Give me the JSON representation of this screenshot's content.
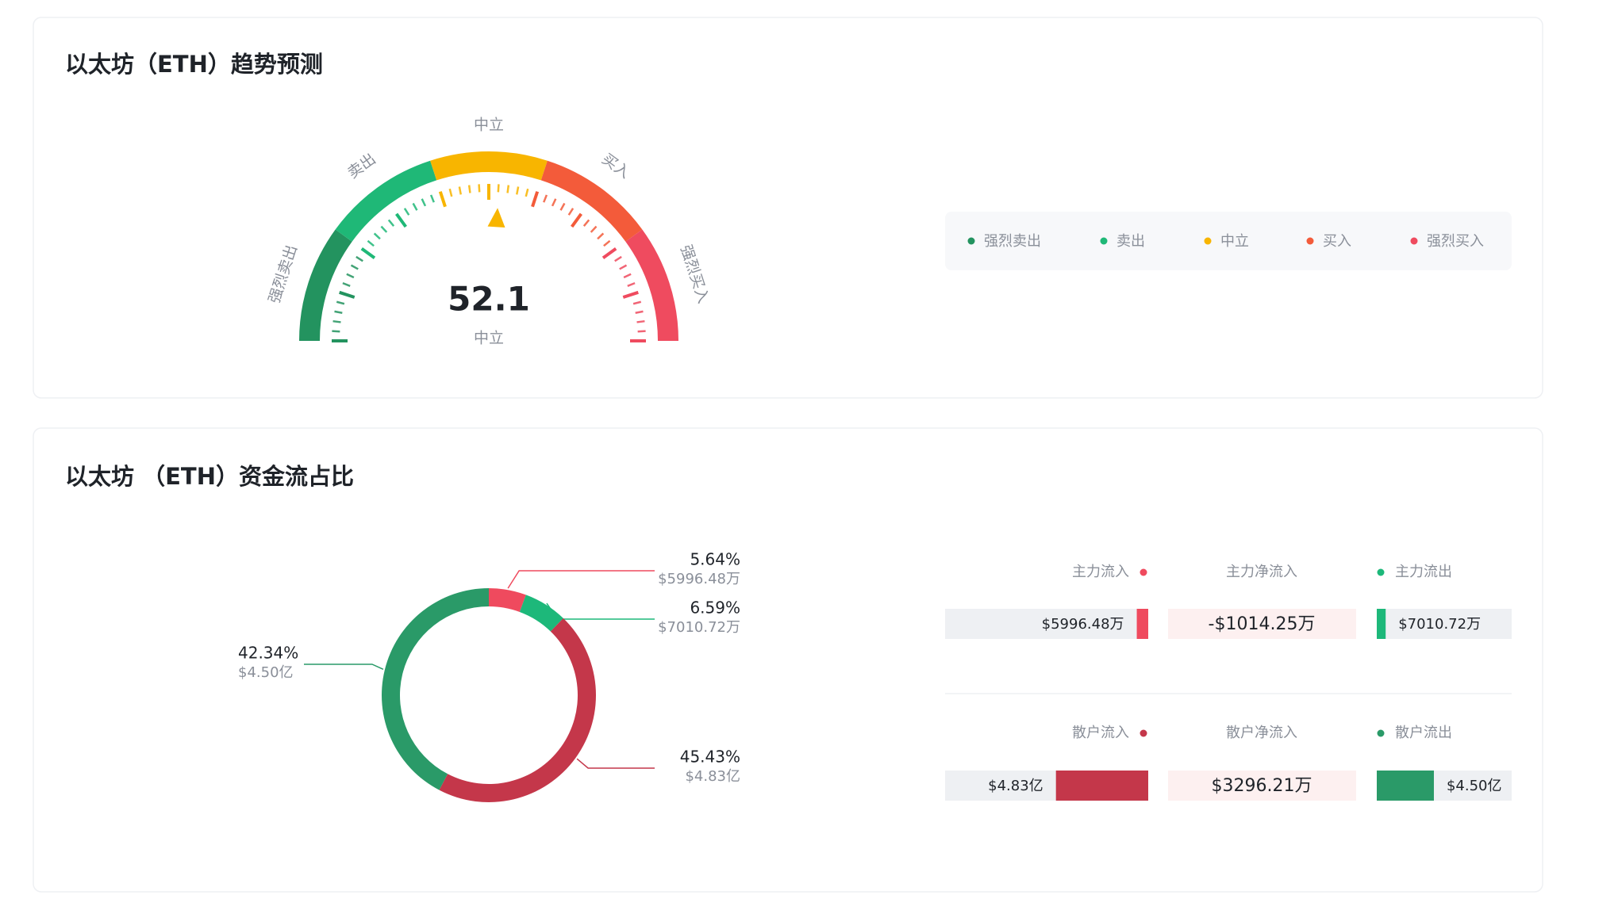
{
  "trend": {
    "title": "以太坊（ETH）趋势预测",
    "value": 52.1,
    "value_label": "中立",
    "range": [
      0,
      100
    ],
    "zones": [
      {
        "label": "强烈卖出",
        "color": "#23935f"
      },
      {
        "label": "卖出",
        "color": "#1fb877"
      },
      {
        "label": "中立",
        "color": "#f8b500"
      },
      {
        "label": "买入",
        "color": "#f35b3a"
      },
      {
        "label": "强烈买入",
        "color": "#ef4b5f"
      }
    ]
  },
  "flow": {
    "title": "以太坊 （ETH）资金流占比",
    "donut": {
      "values": [
        5.64,
        6.59,
        45.43,
        42.34
      ],
      "value_labels": [
        "5.64%",
        "6.59%",
        "45.43%",
        "42.34%"
      ],
      "amounts": [
        "$5996.48万",
        "$7010.72万",
        "$4.83亿",
        "$4.50亿"
      ],
      "colors": [
        "#ef4a5e",
        "#1db87a",
        "#c4374a",
        "#2a9a68"
      ]
    },
    "rows": [
      {
        "inflow_label": "主力流入",
        "net_label": "主力净流入",
        "outflow_label": "主力流出",
        "net": "-$1014.25万"
      },
      {
        "inflow_label": "散户流入",
        "net_label": "散户净流入",
        "outflow_label": "散户流出",
        "net": "$3296.21万"
      }
    ]
  }
}
